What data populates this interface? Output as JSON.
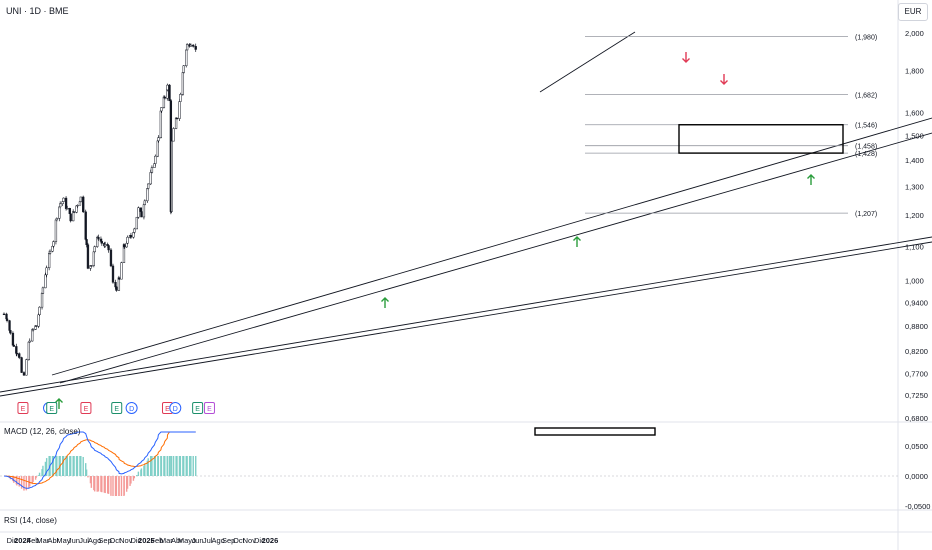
{
  "header": {
    "title": "UNI · 1D · BME",
    "currency": "EUR"
  },
  "colors": {
    "up": "#26a69a",
    "down": "#ef5350",
    "macd": "#2962ff",
    "signal": "#ff6d00",
    "arrow_up": "#2a9d3c",
    "arrow_down": "#e03a55"
  },
  "panes": {
    "macd_title": "MACD (12, 26, close)",
    "rsi_title": "RSI (14, close)"
  },
  "chart_data": {
    "type": "candlestick",
    "title": "UNI · 1D · BME",
    "currency": "EUR",
    "y_scale": "log",
    "ylim": [
      0.68,
      2.05
    ],
    "y_ticks": [
      "2,000",
      "1,800",
      "1,600",
      "1,500",
      "1,400",
      "1,300",
      "1,200",
      "1,100",
      "1,000",
      "0,9400",
      "0,8800",
      "0,8200",
      "0,7700",
      "0,7250",
      "0,6800"
    ],
    "y_tick_values": [
      2.0,
      1.8,
      1.6,
      1.5,
      1.4,
      1.3,
      1.2,
      1.1,
      1.0,
      0.94,
      0.88,
      0.82,
      0.77,
      0.725,
      0.68
    ],
    "x_ticks": [
      "Dic",
      "2024",
      "Feb",
      "Mar",
      "Abr",
      "May",
      "Jun",
      "Jul",
      "Ago",
      "Sep",
      "Oct",
      "Nov",
      "Dic",
      "2025",
      "Feb",
      "Mar",
      "Abr",
      "Mayo",
      "Jun",
      "Jul",
      "Ago",
      "Sep",
      "Oct",
      "Nov",
      "Dic",
      "2026"
    ],
    "x_tick_bold": [
      "2024",
      "2025",
      "2026"
    ],
    "price_path": [
      [
        "2023-12-01",
        0.91
      ],
      [
        "2023-12-10",
        0.9
      ],
      [
        "2023-12-20",
        0.86
      ],
      [
        "2023-12-30",
        0.83
      ],
      [
        "2024-01-08",
        0.82
      ],
      [
        "2024-01-15",
        0.81
      ],
      [
        "2024-01-22",
        0.77
      ],
      [
        "2024-01-29",
        0.76
      ],
      [
        "2024-02-05",
        0.8
      ],
      [
        "2024-02-15",
        0.85
      ],
      [
        "2024-02-25",
        0.87
      ],
      [
        "2024-03-05",
        0.88
      ],
      [
        "2024-03-15",
        0.92
      ],
      [
        "2024-03-25",
        0.98
      ],
      [
        "2024-04-05",
        1.04
      ],
      [
        "2024-04-15",
        1.08
      ],
      [
        "2024-04-25",
        1.12
      ],
      [
        "2024-05-05",
        1.2
      ],
      [
        "2024-05-15",
        1.24
      ],
      [
        "2024-05-25",
        1.25
      ],
      [
        "2024-06-05",
        1.22
      ],
      [
        "2024-06-15",
        1.19
      ],
      [
        "2024-06-25",
        1.21
      ],
      [
        "2024-07-05",
        1.24
      ],
      [
        "2024-07-15",
        1.26
      ],
      [
        "2024-07-22",
        1.22
      ],
      [
        "2024-08-01",
        1.1
      ],
      [
        "2024-08-05",
        1.03
      ],
      [
        "2024-08-15",
        1.05
      ],
      [
        "2024-08-25",
        1.1
      ],
      [
        "2024-09-05",
        1.13
      ],
      [
        "2024-09-15",
        1.11
      ],
      [
        "2024-09-25",
        1.1
      ],
      [
        "2024-10-05",
        1.09
      ],
      [
        "2024-10-12",
        1.04
      ],
      [
        "2024-10-18",
        0.99
      ],
      [
        "2024-10-28",
        0.98
      ],
      [
        "2024-11-05",
        1.0
      ],
      [
        "2024-11-12",
        1.05
      ],
      [
        "2024-11-20",
        1.1
      ],
      [
        "2024-11-30",
        1.12
      ],
      [
        "2024-12-10",
        1.13
      ],
      [
        "2024-12-20",
        1.16
      ],
      [
        "2025-01-01",
        1.22
      ],
      [
        "2025-01-10",
        1.2
      ],
      [
        "2025-01-20",
        1.26
      ],
      [
        "2025-01-30",
        1.31
      ],
      [
        "2025-02-10",
        1.36
      ],
      [
        "2025-02-20",
        1.41
      ],
      [
        "2025-03-01",
        1.5
      ],
      [
        "2025-03-10",
        1.62
      ],
      [
        "2025-03-20",
        1.67
      ],
      [
        "2025-03-28",
        1.72
      ],
      [
        "2025-04-03",
        1.65
      ],
      [
        "2025-04-07",
        1.22
      ],
      [
        "2025-04-09",
        1.47
      ],
      [
        "2025-04-15",
        1.52
      ],
      [
        "2025-04-25",
        1.58
      ],
      [
        "2025-05-05",
        1.68
      ],
      [
        "2025-05-15",
        1.83
      ],
      [
        "2025-05-25",
        1.93
      ],
      [
        "2025-06-05",
        1.95
      ],
      [
        "2025-06-12",
        1.94
      ],
      [
        "2025-06-20",
        1.9
      ]
    ],
    "horizontal_levels": [
      {
        "label": "(1,980)",
        "value": 1.98
      },
      {
        "label": "(1,682)",
        "value": 1.682
      },
      {
        "label": "(1,546)",
        "value": 1.546
      },
      {
        "label": "(1,458)",
        "value": 1.458
      },
      {
        "label": "(1,428)",
        "value": 1.428
      },
      {
        "label": "(1,207)",
        "value": 1.207
      }
    ],
    "events": [
      {
        "date": "2024-01-26",
        "label": "E",
        "kind": "earnings"
      },
      {
        "date": "2024-04-12",
        "label": "D",
        "kind": "dividend"
      },
      {
        "date": "2024-04-20",
        "label": "E",
        "kind": "earnings"
      },
      {
        "date": "2024-07-30",
        "label": "E",
        "kind": "earnings"
      },
      {
        "date": "2024-10-29",
        "label": "E",
        "kind": "earnings"
      },
      {
        "date": "2024-12-12",
        "label": "D",
        "kind": "dividend"
      },
      {
        "date": "2025-03-28",
        "label": "E",
        "kind": "earnings"
      },
      {
        "date": "2025-04-20",
        "label": "D",
        "kind": "dividend"
      },
      {
        "date": "2025-06-25",
        "label": "E",
        "kind": "earnings"
      },
      {
        "date": "2025-07-30",
        "label": "E",
        "kind": "earnings_future"
      }
    ],
    "macd": {
      "title": "MACD (12, 26, close)",
      "y_ticks": [
        "0,0500",
        "0,0000",
        "-0,0500"
      ],
      "y_tick_values": [
        0.05,
        0.0,
        -0.05
      ]
    },
    "rsi": {
      "title": "RSI (14, close)"
    }
  }
}
